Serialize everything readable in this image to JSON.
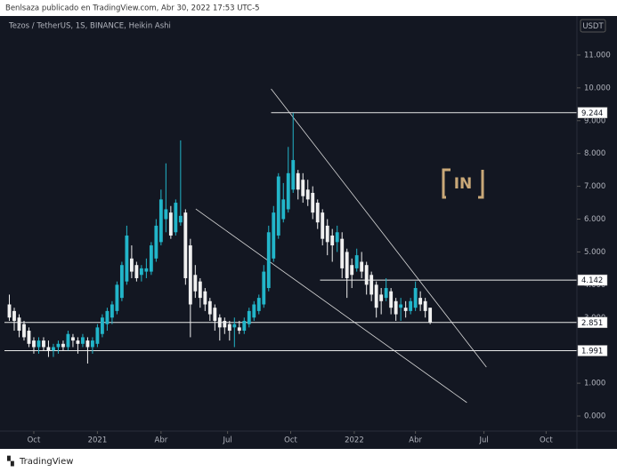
{
  "header": {
    "author_line": "Benlsaza publicado en TradingView.com, Abr 30, 2022 17:53 UTC-5",
    "brand": "TradingView"
  },
  "chart_data": {
    "type": "candlestick",
    "title": "Tezos / TetherUS, 1S, BINANCE, Heikin Ashi",
    "currency": "USDT",
    "watermark": "IN",
    "up_color": "#22b5c9",
    "down_color": "#f0f0f0",
    "xlim": [
      0,
      117
    ],
    "xticks": [
      {
        "value": 6,
        "label": "Oct"
      },
      {
        "value": 19,
        "label": "2021"
      },
      {
        "value": 32,
        "label": "Abr"
      },
      {
        "value": 45.6,
        "label": "Jul"
      },
      {
        "value": 58.5,
        "label": "Oct"
      },
      {
        "value": 71.5,
        "label": "2022"
      },
      {
        "value": 84,
        "label": "Abr"
      },
      {
        "value": 98,
        "label": "Jul"
      },
      {
        "value": 110.7,
        "label": "Oct"
      }
    ],
    "ylim": [
      -0.46,
      12.19
    ],
    "yticks": [
      {
        "value": 0,
        "label": "0.000"
      },
      {
        "value": 1,
        "label": "1.000"
      },
      {
        "value": 2,
        "label": "2.000"
      },
      {
        "value": 3,
        "label": "3.000"
      },
      {
        "value": 4,
        "label": "4.000"
      },
      {
        "value": 5,
        "label": "5.000"
      },
      {
        "value": 6,
        "label": "6.000"
      },
      {
        "value": 7,
        "label": "7.000"
      },
      {
        "value": 8,
        "label": "8.000"
      },
      {
        "value": 9,
        "label": "9.000"
      },
      {
        "value": 10,
        "label": "10.000"
      },
      {
        "value": 11,
        "label": "11.000"
      }
    ],
    "x": [
      1,
      2,
      3,
      4,
      5,
      6,
      7,
      8,
      9,
      10,
      11,
      12,
      13,
      14,
      15,
      16,
      17,
      18,
      19,
      20,
      21,
      22,
      23,
      24,
      25,
      26,
      27,
      28,
      29,
      30,
      31,
      32,
      33,
      34,
      35,
      36,
      37,
      38,
      39,
      40,
      41,
      42,
      43,
      44,
      45,
      46,
      47,
      48,
      49,
      50,
      51,
      52,
      53,
      54,
      55,
      56,
      57,
      58,
      59,
      60,
      61,
      62,
      63,
      64,
      65,
      66,
      67,
      68,
      69,
      70,
      71,
      72,
      73,
      74,
      75,
      76,
      77,
      78,
      79,
      80,
      81,
      82,
      83,
      84,
      85,
      86,
      87
    ],
    "open": [
      3.4,
      3.2,
      3.0,
      2.8,
      2.6,
      2.3,
      2.1,
      2.3,
      2.1,
      2.0,
      2.1,
      2.2,
      2.1,
      2.4,
      2.3,
      2.2,
      2.3,
      2.1,
      2.2,
      2.5,
      2.8,
      3.0,
      3.2,
      3.6,
      4.1,
      4.8,
      4.6,
      4.3,
      4.4,
      4.4,
      4.8,
      5.3,
      6.0,
      6.2,
      5.6,
      5.9,
      6.2,
      5.2,
      4.3,
      4.1,
      3.8,
      3.5,
      3.3,
      3.0,
      2.9,
      2.8,
      2.7,
      2.7,
      2.6,
      2.8,
      3.0,
      3.2,
      3.4,
      3.9,
      4.8,
      5.5,
      6.0,
      6.3,
      6.9,
      7.4,
      7.2,
      6.9,
      6.8,
      6.5,
      6.2,
      5.8,
      5.5,
      5.3,
      5.4,
      5.0,
      4.6,
      4.5,
      4.7,
      4.6,
      4.3,
      4.0,
      3.7,
      3.6,
      3.8,
      3.5,
      3.3,
      3.3,
      3.2,
      3.3,
      3.6,
      3.5,
      3.3
    ],
    "high": [
      3.7,
      3.3,
      3.1,
      2.9,
      2.7,
      2.4,
      2.4,
      2.4,
      2.3,
      2.2,
      2.3,
      2.3,
      2.6,
      2.5,
      2.4,
      2.5,
      2.4,
      2.4,
      2.8,
      3.1,
      3.3,
      3.5,
      4.1,
      4.7,
      5.8,
      5.2,
      4.7,
      4.6,
      4.8,
      5.3,
      6.0,
      6.9,
      7.7,
      6.4,
      6.6,
      8.4,
      6.3,
      5.4,
      4.6,
      4.2,
      3.9,
      3.6,
      3.4,
      3.1,
      3.0,
      2.9,
      3.0,
      2.9,
      3.0,
      3.3,
      3.5,
      3.7,
      4.6,
      5.8,
      6.4,
      7.4,
      7.1,
      8.2,
      9.24,
      7.5,
      7.4,
      7.2,
      7.0,
      6.6,
      6.3,
      6.0,
      5.7,
      5.8,
      5.6,
      5.1,
      4.8,
      5.1,
      5.0,
      4.7,
      4.4,
      4.1,
      3.9,
      4.2,
      3.9,
      3.6,
      3.6,
      3.5,
      3.6,
      4.1,
      3.8,
      3.6,
      3.3
    ],
    "low": [
      2.9,
      2.6,
      2.4,
      2.3,
      2.1,
      1.9,
      1.9,
      2.0,
      1.8,
      1.8,
      1.9,
      2.0,
      2.0,
      2.1,
      1.9,
      2.1,
      1.6,
      1.9,
      2.1,
      2.4,
      2.6,
      2.8,
      3.1,
      3.5,
      4.0,
      4.2,
      4.1,
      4.1,
      4.2,
      4.3,
      4.7,
      5.2,
      5.6,
      5.4,
      5.5,
      5.8,
      4.0,
      2.4,
      3.6,
      3.3,
      3.2,
      2.9,
      2.6,
      2.3,
      2.5,
      2.3,
      2.1,
      2.5,
      2.5,
      2.7,
      2.9,
      3.1,
      3.3,
      3.8,
      4.7,
      5.4,
      5.9,
      6.2,
      6.8,
      6.6,
      6.5,
      6.4,
      6.0,
      5.7,
      5.2,
      4.9,
      4.7,
      5.0,
      4.2,
      3.6,
      3.9,
      4.4,
      4.2,
      3.7,
      3.5,
      3.0,
      3.1,
      3.5,
      3.1,
      2.9,
      2.9,
      3.0,
      3.1,
      3.2,
      3.2,
      3.0,
      2.8
    ],
    "close": [
      3.0,
      2.9,
      2.6,
      2.4,
      2.2,
      2.1,
      2.3,
      2.1,
      2.0,
      2.1,
      2.2,
      2.1,
      2.5,
      2.3,
      2.2,
      2.4,
      2.1,
      2.3,
      2.7,
      3.0,
      3.2,
      3.4,
      4.0,
      4.6,
      5.5,
      4.4,
      4.2,
      4.5,
      4.5,
      5.2,
      5.8,
      6.6,
      6.3,
      5.5,
      6.5,
      6.1,
      4.2,
      3.4,
      3.8,
      3.6,
      3.4,
      3.1,
      2.9,
      2.7,
      2.7,
      2.6,
      2.8,
      2.6,
      2.9,
      3.2,
      3.4,
      3.6,
      4.4,
      5.6,
      6.2,
      7.3,
      6.6,
      7.4,
      7.8,
      6.9,
      6.7,
      6.6,
      6.2,
      5.9,
      5.4,
      5.3,
      5.2,
      5.6,
      4.5,
      4.2,
      4.3,
      4.9,
      4.4,
      4.0,
      3.7,
      3.3,
      3.5,
      3.9,
      3.3,
      3.1,
      3.4,
      3.2,
      3.5,
      3.9,
      3.4,
      3.2,
      2.85
    ],
    "levels": [
      {
        "value": 9.244,
        "from": 54.5
      },
      {
        "value": 4.142,
        "from": 64.5
      },
      {
        "value": 2.851,
        "from": 0
      },
      {
        "value": 1.991,
        "from": 0
      }
    ],
    "trendlines": [
      {
        "x": [
          54.5,
          98.5
        ],
        "y": [
          9.97,
          1.49
        ]
      },
      {
        "x": [
          39.1,
          94.5
        ],
        "y": [
          6.31,
          0.41
        ]
      }
    ]
  }
}
